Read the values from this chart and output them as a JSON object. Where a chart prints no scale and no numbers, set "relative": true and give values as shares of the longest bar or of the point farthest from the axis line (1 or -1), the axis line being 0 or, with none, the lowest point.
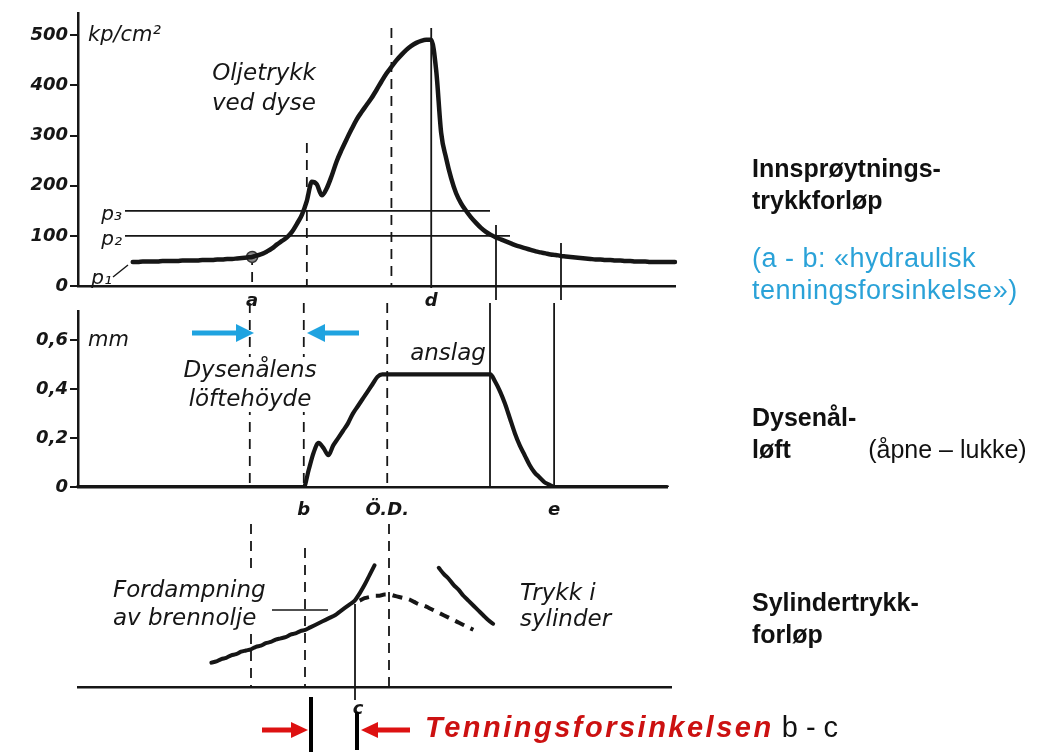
{
  "chart_data": [
    {
      "type": "line",
      "ylabel": "kp/cm²",
      "ylim": [
        0,
        545
      ],
      "yticks": [
        0,
        100,
        200,
        300,
        400,
        500
      ],
      "categories": [
        null,
        null,
        null,
        null,
        null,
        null,
        null,
        null,
        null,
        null,
        null,
        null,
        null,
        null,
        null,
        null,
        null,
        null,
        null,
        null,
        null,
        null,
        null,
        null,
        null,
        null,
        null,
        null,
        null,
        null,
        null,
        null,
        null,
        null,
        null,
        "a",
        null,
        null,
        null,
        null,
        null,
        null,
        null,
        null,
        null,
        null,
        null,
        null,
        null,
        null,
        null,
        null,
        null,
        null,
        null,
        null,
        null,
        null,
        null,
        null,
        null,
        null,
        null,
        null,
        null,
        null,
        null,
        null,
        null,
        null,
        null,
        "d",
        null,
        null,
        null,
        null,
        null,
        null,
        null,
        null,
        null,
        null,
        null,
        null,
        null,
        null,
        null,
        null,
        null,
        null,
        null,
        null,
        null,
        null,
        null,
        null,
        null,
        null,
        null,
        null,
        null,
        null,
        null,
        null,
        null,
        null,
        null,
        null,
        null,
        null,
        null,
        null,
        null,
        null,
        null,
        null,
        null,
        null,
        null,
        null,
        null
      ],
      "series": [
        {
          "color": "#161616",
          "values": [
            null,
            null,
            null,
            null,
            null,
            null,
            null,
            null,
            null,
            null,
            null,
            48,
            48,
            49,
            49,
            49,
            49,
            50,
            50,
            50,
            50,
            51,
            51,
            51,
            51,
            52,
            52,
            52,
            53,
            53,
            54,
            54,
            55,
            56,
            57,
            58,
            61,
            64,
            69,
            75,
            83,
            90,
            97,
            108,
            124,
            142,
            170,
            208,
            203,
            181,
            195,
            220,
            249,
            272,
            293,
            313,
            332,
            347,
            361,
            375,
            391,
            408,
            424,
            437,
            450,
            461,
            471,
            479,
            485,
            489,
            491,
            491,
            430,
            305,
            255,
            215,
            185,
            165,
            150,
            137,
            126,
            116,
            108,
            102,
            97,
            93,
            89,
            85,
            81,
            78,
            75,
            72,
            69,
            67,
            65,
            63,
            62,
            60,
            59,
            58,
            57,
            56,
            55,
            54,
            53,
            53,
            52,
            52,
            51,
            51,
            50,
            50,
            49,
            49,
            49,
            48,
            48,
            48,
            48,
            48,
            48
          ]
        },
        {
          "type": "scatter",
          "color": "#8a8a8a",
          "marker": "circle",
          "x": [
            "a"
          ],
          "values": [
            58
          ]
        }
      ],
      "ref_lines": [
        {
          "axis": "y",
          "value": 150,
          "label": "p₃"
        },
        {
          "axis": "y",
          "value": 100,
          "label": "p₂"
        },
        {
          "axis": "x",
          "value": "d"
        }
      ],
      "annotations": [
        "Oljetrykk ved dyse",
        "p₁"
      ]
    },
    {
      "type": "line",
      "ylabel": "mm",
      "ylim": [
        0,
        0.72
      ],
      "yticks": [
        0,
        {
          "value": 0.2,
          "label": "0,2"
        },
        {
          "value": 0.4,
          "label": "0,4"
        },
        {
          "value": 0.6,
          "label": "0,6"
        }
      ],
      "categories": [
        null,
        null,
        null,
        null,
        null,
        null,
        null,
        null,
        null,
        null,
        null,
        null,
        null,
        null,
        null,
        null,
        null,
        null,
        null,
        null,
        null,
        null,
        null,
        null,
        null,
        null,
        null,
        null,
        null,
        null,
        null,
        null,
        null,
        null,
        null,
        null,
        null,
        null,
        null,
        null,
        null,
        null,
        null,
        null,
        null,
        null,
        "b",
        null,
        null,
        null,
        null,
        null,
        null,
        null,
        null,
        null,
        null,
        null,
        null,
        null,
        null,
        null,
        null,
        "Ö.D.",
        null,
        null,
        null,
        null,
        null,
        null,
        null,
        null,
        null,
        null,
        null,
        null,
        null,
        null,
        null,
        null,
        null,
        null,
        null,
        null,
        null,
        null,
        null,
        null,
        null,
        null,
        null,
        null,
        null,
        null,
        null,
        null,
        null,
        "e",
        null,
        null,
        null,
        null,
        null,
        null,
        null,
        null,
        null,
        null,
        null,
        null,
        null,
        null,
        null,
        null,
        null,
        null,
        null,
        null,
        null,
        null,
        null
      ],
      "series": [
        {
          "color": "#161616",
          "values": [
            0,
            0,
            0,
            0,
            0,
            0,
            0,
            0,
            0,
            0,
            0,
            0,
            0,
            0,
            0,
            0,
            0,
            0,
            0,
            0,
            0,
            0,
            0,
            0,
            0,
            0,
            0,
            0,
            0,
            0,
            0,
            0,
            0,
            0,
            0,
            0,
            0,
            0,
            0,
            0,
            0,
            0,
            0,
            0,
            0,
            0,
            0,
            0.07,
            0.14,
            0.18,
            0.16,
            0.13,
            0.17,
            0.2,
            0.23,
            0.26,
            0.3,
            0.33,
            0.36,
            0.39,
            0.42,
            0.45,
            0.46,
            0.46,
            0.46,
            0.46,
            0.46,
            0.46,
            0.46,
            0.46,
            0.46,
            0.46,
            0.46,
            0.46,
            0.46,
            0.46,
            0.46,
            0.46,
            0.46,
            0.46,
            0.46,
            0.46,
            0.46,
            0.46,
            0.46,
            0.43,
            0.39,
            0.34,
            0.28,
            0.22,
            0.17,
            0.13,
            0.09,
            0.06,
            0.04,
            0.02,
            0.01,
            0,
            0,
            0,
            0,
            0,
            0,
            0,
            0,
            0,
            0,
            0,
            0,
            0,
            0,
            0,
            0,
            0,
            0,
            0,
            0,
            0,
            0,
            0,
            0
          ]
        }
      ],
      "ref_lines": [
        {
          "axis": "x",
          "value": "b",
          "line_style": "dashed"
        },
        {
          "axis": "x",
          "value": "Ö.D.",
          "line_style": "dashed"
        },
        {
          "axis": "x",
          "value": "e"
        }
      ],
      "annotations": [
        "Dysenålens löftehöyde",
        "anslag"
      ]
    },
    {
      "type": "line",
      "relative": true,
      "categories": [
        null,
        null,
        null,
        null,
        null,
        null,
        null,
        null,
        null,
        null,
        null,
        null,
        null,
        null,
        null,
        null,
        null,
        null,
        null,
        null,
        null,
        null,
        null,
        null,
        null,
        null,
        null,
        null,
        null,
        null,
        null,
        null,
        null,
        null,
        null,
        null,
        null,
        null,
        null,
        null,
        null,
        null,
        null,
        null,
        null,
        null,
        null,
        null,
        null,
        null,
        null,
        null,
        null,
        null,
        null,
        null,
        null,
        null,
        null,
        null,
        null,
        null,
        null,
        null,
        null,
        null,
        null,
        null,
        null,
        null,
        null,
        null,
        null,
        null,
        null,
        null,
        null,
        null,
        null,
        null,
        null,
        null,
        null,
        null,
        null,
        null,
        null,
        null,
        null,
        null,
        null,
        null,
        null,
        null,
        null,
        null,
        null,
        null,
        null,
        null,
        null,
        null,
        null,
        null,
        null,
        null,
        null,
        null,
        null,
        null,
        null,
        null,
        null,
        null,
        null,
        null,
        null,
        null,
        null,
        null,
        null
      ],
      "series": [
        {
          "color": "#161616",
          "values": [
            null,
            null,
            null,
            null,
            null,
            null,
            null,
            null,
            null,
            null,
            null,
            null,
            null,
            null,
            null,
            null,
            null,
            null,
            null,
            null,
            null,
            null,
            null,
            null,
            null,
            null,
            null,
            0.2,
            0.21,
            0.23,
            0.24,
            0.26,
            0.27,
            0.29,
            0.3,
            0.31,
            0.33,
            0.34,
            0.36,
            0.37,
            0.39,
            0.4,
            0.41,
            0.43,
            0.44,
            0.46,
            0.47,
            0.49,
            0.51,
            0.53,
            0.55,
            0.57,
            0.59,
            0.62,
            0.65,
            0.68,
            0.71,
            0.77,
            0.84,
            0.92,
            1,
            null,
            null,
            null,
            null,
            null,
            null,
            null,
            null,
            null,
            null,
            null,
            null,
            null,
            null,
            null,
            null,
            null,
            null,
            null,
            null,
            null,
            null,
            null,
            null,
            null,
            null,
            null,
            null,
            null,
            null,
            null,
            null,
            null,
            null,
            null,
            null,
            null,
            null,
            null,
            null,
            null,
            null,
            null,
            null,
            null,
            null,
            null,
            null,
            null,
            null,
            null,
            null,
            null,
            null,
            null,
            null,
            null,
            null,
            null,
            null
          ]
        },
        {
          "color": "#161616",
          "line_style": "dashed",
          "values": [
            null,
            null,
            null,
            null,
            null,
            null,
            null,
            null,
            null,
            null,
            null,
            null,
            null,
            null,
            null,
            null,
            null,
            null,
            null,
            null,
            null,
            null,
            null,
            null,
            null,
            null,
            null,
            null,
            null,
            null,
            null,
            null,
            null,
            null,
            null,
            null,
            null,
            null,
            null,
            null,
            null,
            null,
            null,
            null,
            null,
            null,
            null,
            null,
            null,
            null,
            null,
            null,
            null,
            null,
            null,
            null,
            null,
            0.71,
            0.73,
            0.74,
            0.75,
            0.75,
            0.76,
            0.76,
            0.75,
            0.74,
            0.73,
            0.72,
            0.7,
            0.68,
            0.67,
            0.65,
            0.63,
            0.61,
            0.59,
            0.57,
            0.55,
            0.53,
            0.51,
            0.49,
            0.47,
            null,
            null,
            null,
            null,
            null,
            null,
            null,
            null,
            null,
            null,
            null,
            null,
            null,
            null,
            null,
            null,
            null,
            null,
            null,
            null,
            null,
            null,
            null,
            null,
            null,
            null,
            null,
            null,
            null,
            null,
            null,
            null,
            null,
            null,
            null,
            null,
            null,
            null,
            null,
            null
          ]
        },
        {
          "color": "#161616",
          "values": [
            null,
            null,
            null,
            null,
            null,
            null,
            null,
            null,
            null,
            null,
            null,
            null,
            null,
            null,
            null,
            null,
            null,
            null,
            null,
            null,
            null,
            null,
            null,
            null,
            null,
            null,
            null,
            null,
            null,
            null,
            null,
            null,
            null,
            null,
            null,
            null,
            null,
            null,
            null,
            null,
            null,
            null,
            null,
            null,
            null,
            null,
            null,
            null,
            null,
            null,
            null,
            null,
            null,
            null,
            null,
            null,
            null,
            null,
            null,
            null,
            null,
            null,
            null,
            null,
            null,
            null,
            null,
            null,
            null,
            null,
            null,
            null,
            null,
            0.98,
            0.93,
            0.89,
            0.84,
            0.8,
            0.75,
            0.71,
            0.67,
            0.63,
            0.59,
            0.55,
            0.52,
            null,
            null,
            null,
            null,
            null,
            null,
            null,
            null,
            null,
            null,
            null,
            null,
            null,
            null,
            null,
            null,
            null,
            null,
            null,
            null,
            null,
            null,
            null,
            null,
            null,
            null,
            null,
            null,
            null,
            null,
            null,
            null,
            null,
            null,
            null,
            null
          ]
        }
      ],
      "annotations": [
        "Fordampning av brennolje",
        "Trykk i sylinder",
        "c",
        "Tenningsforsinkelsen b - c"
      ]
    },
    {
      "type": "other",
      "annotations": [
        "Innsprøytnings-trykkforløp",
        "(a - b: «hydraulisk tenningsforsinkelse»)",
        "Dysenål-løft",
        "(åpne – lukke)",
        "Sylindertrykk-forløp"
      ]
    }
  ]
}
